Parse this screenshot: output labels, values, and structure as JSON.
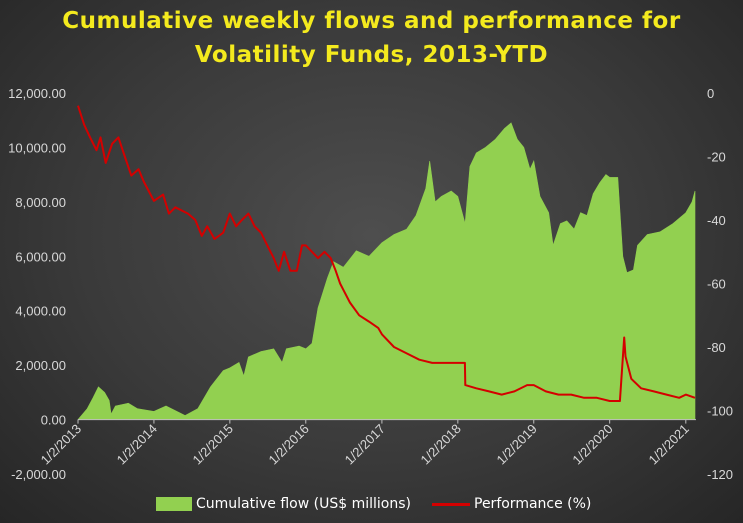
{
  "chart_data": {
    "type": "area",
    "title": "Cumulative weekly flows and performance for Volatility Funds, 2013-YTD",
    "title_lines": [
      "Cumulative weekly flows and performance for",
      "Volatility Funds, 2013-YTD"
    ],
    "x_range": [
      "2013-01-02",
      "2021-02-20"
    ],
    "x_tick_labels": [
      "1/2/2013",
      "1/2/2014",
      "1/2/2015",
      "1/2/2016",
      "1/2/2017",
      "1/2/2018",
      "1/2/2019",
      "1/2/2020",
      "1/2/2021"
    ],
    "x_tick_dates": [
      "2013-01-02",
      "2014-01-02",
      "2015-01-02",
      "2016-01-02",
      "2017-01-02",
      "2018-01-02",
      "2019-01-02",
      "2020-01-02",
      "2021-01-02"
    ],
    "y_left": {
      "range": [
        -2000,
        12000
      ],
      "ticks": [
        -2000,
        0,
        2000,
        4000,
        6000,
        8000,
        10000,
        12000
      ],
      "tick_labels": [
        "-2,000.00",
        "0.00",
        "2,000.00",
        "4,000.00",
        "6,000.00",
        "8,000.00",
        "10,000.00",
        "12,000.00"
      ]
    },
    "y_right": {
      "range": [
        -120,
        0
      ],
      "ticks": [
        0,
        -20,
        -40,
        -60,
        -80,
        -100,
        -120
      ],
      "tick_labels": [
        "0",
        "-20",
        "-40",
        "-60",
        "-80",
        "-100",
        "-120"
      ]
    },
    "grid": false,
    "legend_position": "bottom",
    "series": [
      {
        "name": "Cumulative flow (US$ millions)",
        "type": "area",
        "axis": "left",
        "color": "#92d050",
        "points": [
          [
            "2013-01-02",
            0
          ],
          [
            "2013-02-15",
            400
          ],
          [
            "2013-03-15",
            800
          ],
          [
            "2013-04-10",
            1200
          ],
          [
            "2013-05-10",
            1000
          ],
          [
            "2013-06-01",
            700
          ],
          [
            "2013-06-10",
            200
          ],
          [
            "2013-07-01",
            500
          ],
          [
            "2013-09-01",
            600
          ],
          [
            "2013-10-15",
            400
          ],
          [
            "2014-01-02",
            300
          ],
          [
            "2014-03-01",
            500
          ],
          [
            "2014-06-01",
            150
          ],
          [
            "2014-08-01",
            400
          ],
          [
            "2014-10-01",
            1200
          ],
          [
            "2014-12-01",
            1800
          ],
          [
            "2015-01-02",
            1900
          ],
          [
            "2015-02-15",
            2100
          ],
          [
            "2015-03-10",
            1600
          ],
          [
            "2015-04-01",
            2300
          ],
          [
            "2015-06-01",
            2500
          ],
          [
            "2015-08-01",
            2600
          ],
          [
            "2015-09-10",
            2100
          ],
          [
            "2015-10-01",
            2600
          ],
          [
            "2015-12-01",
            2700
          ],
          [
            "2016-01-02",
            2600
          ],
          [
            "2016-02-01",
            2800
          ],
          [
            "2016-03-01",
            4100
          ],
          [
            "2016-04-15",
            5200
          ],
          [
            "2016-05-15",
            5800
          ],
          [
            "2016-07-01",
            5600
          ],
          [
            "2016-09-01",
            6200
          ],
          [
            "2016-11-01",
            6000
          ],
          [
            "2017-01-02",
            6500
          ],
          [
            "2017-03-01",
            6800
          ],
          [
            "2017-05-01",
            7000
          ],
          [
            "2017-06-15",
            7500
          ],
          [
            "2017-08-01",
            8500
          ],
          [
            "2017-08-20",
            9500
          ],
          [
            "2017-09-15",
            8000
          ],
          [
            "2017-10-15",
            8200
          ],
          [
            "2017-12-01",
            8400
          ],
          [
            "2018-01-02",
            8200
          ],
          [
            "2018-02-06",
            7200
          ],
          [
            "2018-03-01",
            9300
          ],
          [
            "2018-04-01",
            9800
          ],
          [
            "2018-05-15",
            10000
          ],
          [
            "2018-07-01",
            10300
          ],
          [
            "2018-08-15",
            10700
          ],
          [
            "2018-09-15",
            10900
          ],
          [
            "2018-10-15",
            10300
          ],
          [
            "2018-11-15",
            10000
          ],
          [
            "2018-12-15",
            9200
          ],
          [
            "2019-01-02",
            9500
          ],
          [
            "2019-02-01",
            8200
          ],
          [
            "2019-03-15",
            7600
          ],
          [
            "2019-04-05",
            6400
          ],
          [
            "2019-05-10",
            7200
          ],
          [
            "2019-06-10",
            7300
          ],
          [
            "2019-07-15",
            7000
          ],
          [
            "2019-08-15",
            7600
          ],
          [
            "2019-09-15",
            7500
          ],
          [
            "2019-10-15",
            8300
          ],
          [
            "2019-11-15",
            8700
          ],
          [
            "2019-12-15",
            9000
          ],
          [
            "2020-01-02",
            8900
          ],
          [
            "2020-02-10",
            8900
          ],
          [
            "2020-03-05",
            6000
          ],
          [
            "2020-03-25",
            5400
          ],
          [
            "2020-04-25",
            5500
          ],
          [
            "2020-05-15",
            6400
          ],
          [
            "2020-07-01",
            6800
          ],
          [
            "2020-09-01",
            6900
          ],
          [
            "2020-11-01",
            7200
          ],
          [
            "2021-01-02",
            7600
          ],
          [
            "2021-02-01",
            8000
          ],
          [
            "2021-02-15",
            8400
          ]
        ]
      },
      {
        "name": "Performance (%)",
        "type": "line",
        "axis": "right",
        "color": "#d40000",
        "points": [
          [
            "2013-01-02",
            -4
          ],
          [
            "2013-02-01",
            -10
          ],
          [
            "2013-03-01",
            -14
          ],
          [
            "2013-04-01",
            -18
          ],
          [
            "2013-04-20",
            -14
          ],
          [
            "2013-05-15",
            -22
          ],
          [
            "2013-06-15",
            -16
          ],
          [
            "2013-07-15",
            -14
          ],
          [
            "2013-08-15",
            -20
          ],
          [
            "2013-09-15",
            -26
          ],
          [
            "2013-10-20",
            -24
          ],
          [
            "2013-11-15",
            -28
          ],
          [
            "2014-01-02",
            -34
          ],
          [
            "2014-02-15",
            -32
          ],
          [
            "2014-03-15",
            -38
          ],
          [
            "2014-04-15",
            -36
          ],
          [
            "2014-06-15",
            -38
          ],
          [
            "2014-07-20",
            -40
          ],
          [
            "2014-08-20",
            -45
          ],
          [
            "2014-09-15",
            -42
          ],
          [
            "2014-10-20",
            -46
          ],
          [
            "2014-12-01",
            -44
          ],
          [
            "2015-01-02",
            -38
          ],
          [
            "2015-02-01",
            -42
          ],
          [
            "2015-03-01",
            -40
          ],
          [
            "2015-04-01",
            -38
          ],
          [
            "2015-05-01",
            -42
          ],
          [
            "2015-06-01",
            -44
          ],
          [
            "2015-07-01",
            -48
          ],
          [
            "2015-08-01",
            -52
          ],
          [
            "2015-08-25",
            -56
          ],
          [
            "2015-09-20",
            -50
          ],
          [
            "2015-10-20",
            -56
          ],
          [
            "2015-11-20",
            -56
          ],
          [
            "2015-12-15",
            -48
          ],
          [
            "2016-01-02",
            -48
          ],
          [
            "2016-02-01",
            -50
          ],
          [
            "2016-03-01",
            -52
          ],
          [
            "2016-04-01",
            -50
          ],
          [
            "2016-05-01",
            -52
          ],
          [
            "2016-05-25",
            -56
          ],
          [
            "2016-06-15",
            -60
          ],
          [
            "2016-07-01",
            -62
          ],
          [
            "2016-08-01",
            -66
          ],
          [
            "2016-09-15",
            -70
          ],
          [
            "2016-11-01",
            -72
          ],
          [
            "2016-12-15",
            -74
          ],
          [
            "2017-01-02",
            -76
          ],
          [
            "2017-03-01",
            -80
          ],
          [
            "2017-05-01",
            -82
          ],
          [
            "2017-07-01",
            -84
          ],
          [
            "2017-09-01",
            -85
          ],
          [
            "2017-11-01",
            -85
          ],
          [
            "2018-01-02",
            -85
          ],
          [
            "2018-02-05",
            -85
          ],
          [
            "2018-02-07",
            -92
          ],
          [
            "2018-04-01",
            -93
          ],
          [
            "2018-06-01",
            -94
          ],
          [
            "2018-08-01",
            -95
          ],
          [
            "2018-10-01",
            -94
          ],
          [
            "2018-12-01",
            -92
          ],
          [
            "2019-01-02",
            -92
          ],
          [
            "2019-03-01",
            -94
          ],
          [
            "2019-05-01",
            -95
          ],
          [
            "2019-07-01",
            -95
          ],
          [
            "2019-09-01",
            -96
          ],
          [
            "2019-11-01",
            -96
          ],
          [
            "2020-01-02",
            -97
          ],
          [
            "2020-02-20",
            -97
          ],
          [
            "2020-03-12",
            -77
          ],
          [
            "2020-03-18",
            -83
          ],
          [
            "2020-04-15",
            -90
          ],
          [
            "2020-06-01",
            -93
          ],
          [
            "2020-08-01",
            -94
          ],
          [
            "2020-10-01",
            -95
          ],
          [
            "2020-12-01",
            -96
          ],
          [
            "2021-01-02",
            -95
          ],
          [
            "2021-02-15",
            -96
          ]
        ]
      }
    ]
  },
  "legend": {
    "flow_label": "Cumulative flow (US$ millions)",
    "perf_label": "Performance (%)"
  },
  "colors": {
    "flow": "#92d050",
    "performance": "#d40000",
    "title": "#f4ea1e",
    "axis_text": "#d8d8d8"
  }
}
